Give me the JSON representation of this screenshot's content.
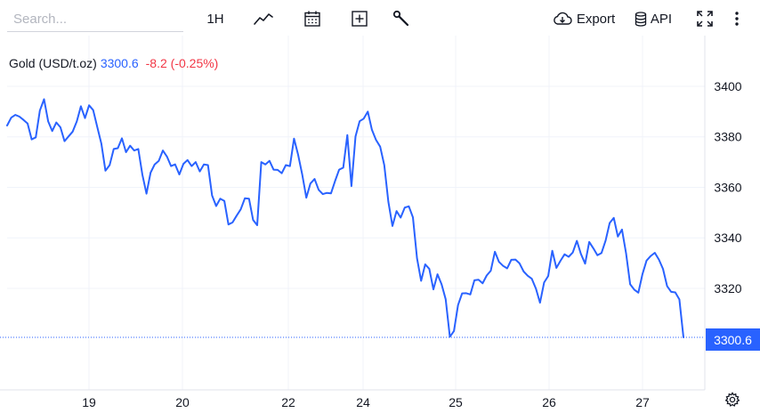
{
  "toolbar": {
    "search_placeholder": "Search...",
    "interval_label": "1H",
    "export_label": "Export",
    "api_label": "API"
  },
  "legend": {
    "name": "Gold (USD/t.oz)",
    "price": "3300.6",
    "change": "-8.2 (-0.25%)"
  },
  "price_tag": "3300.6",
  "colors": {
    "line": "#2962ff",
    "down": "#f23645",
    "grid": "#f0f3fa"
  },
  "chart_data": {
    "type": "line",
    "title": "Gold (USD/t.oz)",
    "x_tick_labels": [
      "19",
      "20",
      "22",
      "24",
      "25",
      "26",
      "27"
    ],
    "y_tick_labels": [
      "3320",
      "3340",
      "3360",
      "3380",
      "3400"
    ],
    "ylim": [
      3293,
      3412
    ],
    "grid": true,
    "last_value": 3300.6,
    "series": [
      {
        "name": "Gold (USD/t.oz)",
        "values": [
          3384.5,
          3387.6,
          3388.7,
          3388.0,
          3386.7,
          3385.3,
          3379.0,
          3379.8,
          3390.4,
          3394.9,
          3386.2,
          3382.3,
          3385.7,
          3383.8,
          3378.3,
          3380.2,
          3382.1,
          3386.1,
          3392.1,
          3387.4,
          3392.5,
          3390.6,
          3383.9,
          3377.3,
          3366.6,
          3368.8,
          3375.2,
          3375.5,
          3379.4,
          3373.9,
          3376.5,
          3374.6,
          3375.2,
          3365.0,
          3357.5,
          3365.8,
          3369.1,
          3370.5,
          3374.6,
          3372.2,
          3368.4,
          3369.1,
          3365.1,
          3369.3,
          3370.8,
          3368.4,
          3370.0,
          3366.3,
          3369.1,
          3368.8,
          3356.8,
          3352.6,
          3355.5,
          3354.6,
          3345.3,
          3346.1,
          3348.8,
          3351.3,
          3355.7,
          3355.5,
          3347.1,
          3345.0,
          3370.0,
          3369.1,
          3370.5,
          3367.0,
          3366.9,
          3365.6,
          3368.8,
          3368.4,
          3379.3,
          3372.9,
          3365.1,
          3355.9,
          3361.5,
          3363.3,
          3359.0,
          3357.3,
          3357.8,
          3357.6,
          3362.5,
          3367.0,
          3367.8,
          3380.7,
          3360.5,
          3380.2,
          3386.2,
          3387.2,
          3390.0,
          3382.8,
          3378.8,
          3376.1,
          3368.8,
          3354.3,
          3344.7,
          3350.6,
          3348.0,
          3352.0,
          3352.5,
          3348.1,
          3331.9,
          3323.0,
          3329.5,
          3327.7,
          3319.6,
          3325.6,
          3321.6,
          3315.7,
          3300.8,
          3303.1,
          3313.4,
          3318.0,
          3318.1,
          3317.6,
          3323.2,
          3323.4,
          3322.0,
          3325.1,
          3327.0,
          3334.5,
          3330.5,
          3328.9,
          3327.9,
          3331.3,
          3331.4,
          3329.9,
          3326.7,
          3325.0,
          3323.8,
          3319.9,
          3314.3,
          3322.3,
          3324.9,
          3334.9,
          3328.1,
          3330.9,
          3333.5,
          3332.5,
          3334.2,
          3338.8,
          3333.6,
          3329.8,
          3338.4,
          3335.9,
          3333.1,
          3334.0,
          3338.9,
          3345.9,
          3347.9,
          3340.5,
          3343.3,
          3333.9,
          3321.6,
          3319.5,
          3318.3,
          3325.6,
          3331.0,
          3332.8,
          3334.1,
          3331.4,
          3327.7,
          3320.9,
          3318.6,
          3318.4,
          3315.6,
          3300.6
        ]
      }
    ]
  }
}
